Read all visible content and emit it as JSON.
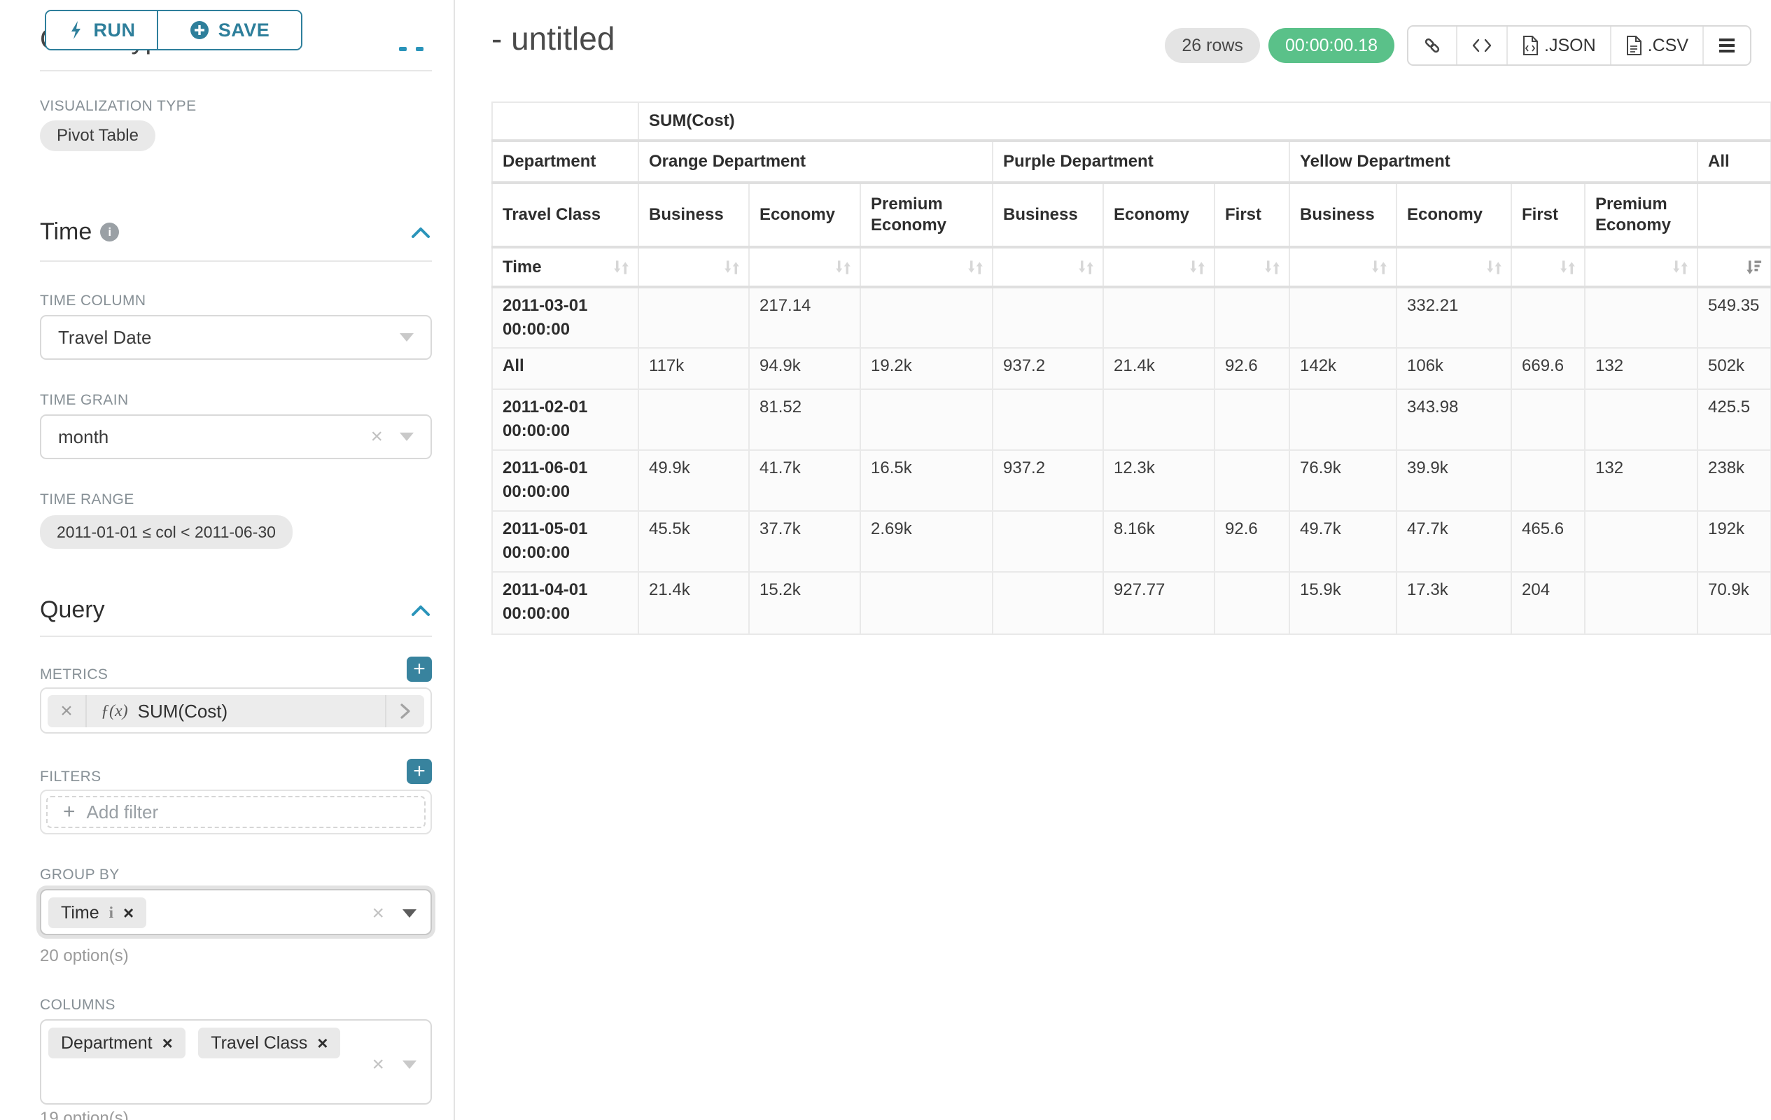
{
  "colors": {
    "accent": "#2e7f9b",
    "accent_bright": "#2a94ba",
    "success_green": "#5ac189",
    "chip_bg": "#e9e9e9",
    "grid": "#e9e9e9"
  },
  "icons": {
    "run": "bolt-icon",
    "save": "plus-circle-icon",
    "section_collapse": "chevron-up-icon",
    "info": "info-circle-icon",
    "dropdown": "caret-down-icon",
    "clear": "x-icon",
    "chip_remove": "x-icon",
    "metric_function": "fx-glyph",
    "metric_expand": "chevron-right-icon",
    "sort": "arrows-up-down-icon",
    "sort_active": "sort-desc-bars-icon",
    "permalink": "link-icon",
    "embed": "code-icon",
    "export_json": "file-code-icon",
    "export_csv": "file-lines-icon",
    "menu": "hamburger-icon"
  },
  "toolbar": {
    "run_label": "RUN",
    "save_label": "SAVE"
  },
  "panel": {
    "chart_type": {
      "heading": "Chart Type",
      "viz_label": "VISUALIZATION TYPE",
      "viz_value": "Pivot Table"
    },
    "time": {
      "heading": "Time",
      "column_label": "TIME COLUMN",
      "column_value": "Travel Date",
      "grain_label": "TIME GRAIN",
      "grain_value": "month",
      "range_label": "TIME RANGE",
      "range_value": "2011-01-01 ≤ col < 2011-06-30"
    },
    "query": {
      "heading": "Query",
      "metrics_label": "METRICS",
      "metric_fx": "ƒ(x)",
      "metric_name": "SUM(Cost)",
      "filters_label": "FILTERS",
      "add_filter_label": "Add filter",
      "group_by_label": "GROUP BY",
      "group_by_chip": "Time",
      "group_by_chip_info": "i",
      "group_by_count": "20 option(s)",
      "columns_label": "COLUMNS",
      "columns_chip_1": "Department",
      "columns_chip_2": "Travel Class",
      "columns_count": "19 option(s)"
    }
  },
  "header": {
    "title": "- untitled",
    "rows_badge": "26 rows",
    "timer": "00:00:00.18",
    "json_label": ".JSON",
    "csv_label": ".CSV"
  },
  "chart_data": {
    "type": "table",
    "title": "SUM(Cost)",
    "row_dimension_header": "Department",
    "column_dimension_header": "Travel Class",
    "time_header": "Time",
    "column_groups": [
      {
        "label": "Orange Department",
        "span": 3
      },
      {
        "label": "Purple Department",
        "span": 3
      },
      {
        "label": "Yellow Department",
        "span": 4
      },
      {
        "label": "All",
        "span": 1
      }
    ],
    "columns": [
      "Business",
      "Economy",
      "Premium Economy",
      "Business",
      "Economy",
      "First",
      "Business",
      "Economy",
      "First",
      "Premium Economy",
      ""
    ],
    "rows": [
      {
        "label": "2011-03-01 00:00:00",
        "values": [
          "",
          "217.14",
          "",
          "",
          "",
          "",
          "",
          "332.21",
          "",
          "",
          "549.35"
        ]
      },
      {
        "label": "All",
        "values": [
          "117k",
          "94.9k",
          "19.2k",
          "937.2",
          "21.4k",
          "92.6",
          "142k",
          "106k",
          "669.6",
          "132",
          "502k"
        ]
      },
      {
        "label": "2011-02-01 00:00:00",
        "values": [
          "",
          "81.52",
          "",
          "",
          "",
          "",
          "",
          "343.98",
          "",
          "",
          "425.5"
        ]
      },
      {
        "label": "2011-06-01 00:00:00",
        "values": [
          "49.9k",
          "41.7k",
          "16.5k",
          "937.2",
          "12.3k",
          "",
          "76.9k",
          "39.9k",
          "",
          "132",
          "238k"
        ]
      },
      {
        "label": "2011-05-01 00:00:00",
        "values": [
          "45.5k",
          "37.7k",
          "2.69k",
          "",
          "8.16k",
          "92.6",
          "49.7k",
          "47.7k",
          "465.6",
          "",
          "192k"
        ]
      },
      {
        "label": "2011-04-01 00:00:00",
        "values": [
          "21.4k",
          "15.2k",
          "",
          "",
          "927.77",
          "",
          "15.9k",
          "17.3k",
          "204",
          "",
          "70.9k"
        ]
      }
    ]
  }
}
